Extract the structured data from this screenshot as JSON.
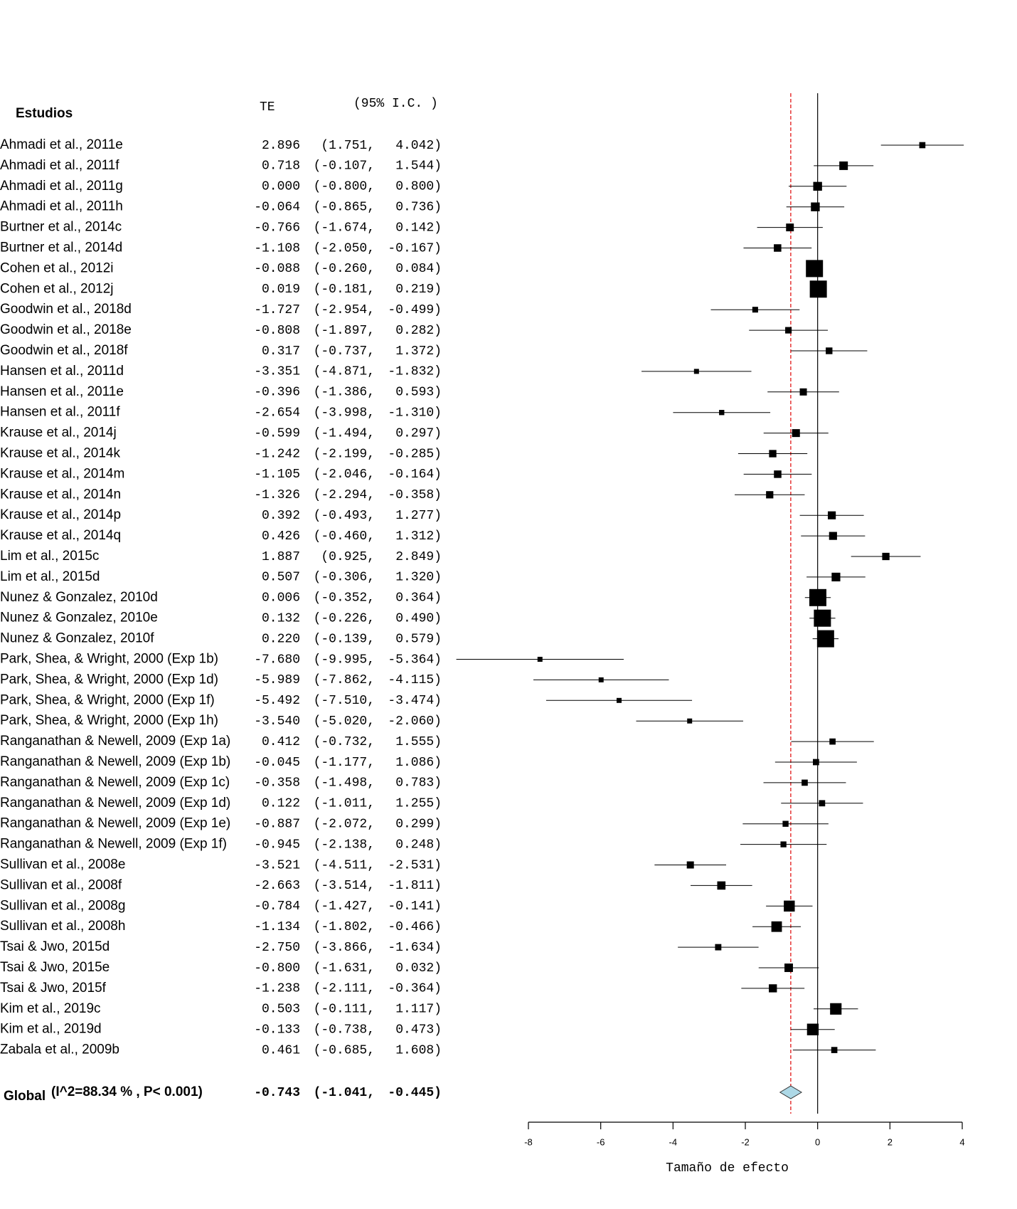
{
  "chart_data": {
    "type": "forest",
    "study_header": "Estudios",
    "te_header": "TE",
    "ci_header": "(95% I.C. )",
    "xlabel": "Tamaño de efecto",
    "xlim": [
      -8,
      4
    ],
    "xticks": [
      -8,
      -6,
      -4,
      -2,
      0,
      2,
      4
    ],
    "marker_color": "#000000",
    "diamond_color": "#add8e6",
    "reference_color": "#e00000",
    "studies": [
      "Ahmadi et al., 2011e",
      "Ahmadi et al., 2011f",
      "Ahmadi et al., 2011g",
      "Ahmadi et al., 2011h",
      "Burtner et al., 2014c",
      "Burtner et al., 2014d",
      "Cohen et al., 2012i",
      "Cohen et al., 2012j",
      "Goodwin et al., 2018d",
      "Goodwin et al., 2018e",
      "Goodwin et al., 2018f",
      "Hansen et al., 2011d",
      "Hansen et al., 2011e",
      "Hansen et al., 2011f",
      "Krause et al., 2014j",
      "Krause et al., 2014k",
      "Krause et al., 2014m",
      "Krause et al., 2014n",
      "Krause et al., 2014p",
      "Krause et al., 2014q",
      "Lim et al., 2015c",
      "Lim et al., 2015d",
      "Nunez & Gonzalez, 2010d",
      "Nunez & Gonzalez, 2010e",
      "Nunez & Gonzalez, 2010f",
      "Park, Shea, & Wright, 2000 (Exp 1b)",
      "Park, Shea, & Wright, 2000 (Exp 1d)",
      "Park, Shea, & Wright, 2000 (Exp 1f)",
      "Park, Shea, & Wright, 2000 (Exp 1h)",
      "Ranganathan & Newell, 2009 (Exp 1a)",
      "Ranganathan & Newell, 2009 (Exp 1b)",
      "Ranganathan & Newell, 2009 (Exp 1c)",
      "Ranganathan & Newell, 2009 (Exp 1d)",
      "Ranganathan & Newell, 2009 (Exp 1e)",
      "Ranganathan & Newell, 2009 (Exp 1f)",
      "Sullivan et al., 2008e",
      "Sullivan et al., 2008f",
      "Sullivan et al., 2008g",
      "Sullivan et al., 2008h",
      "Tsai & Jwo, 2015d",
      "Tsai & Jwo, 2015e",
      "Tsai & Jwo, 2015f",
      "Kim et al., 2019c",
      "Kim et al., 2019d",
      "Zabala et al., 2009b"
    ],
    "values": [
      2.896,
      0.718,
      0.0,
      -0.064,
      -0.766,
      -1.108,
      -0.088,
      0.019,
      -1.727,
      -0.808,
      0.317,
      -3.351,
      -0.396,
      -2.654,
      -0.599,
      -1.242,
      -1.105,
      -1.326,
      0.392,
      0.426,
      1.887,
      0.507,
      0.006,
      0.132,
      0.22,
      -7.68,
      -5.989,
      -5.492,
      -3.54,
      0.412,
      -0.045,
      -0.358,
      0.122,
      -0.887,
      -0.945,
      -3.521,
      -2.663,
      -0.784,
      -1.134,
      -2.75,
      -0.8,
      -1.238,
      0.503,
      -0.133,
      0.461
    ],
    "value_labels": [
      "2.896",
      "0.718",
      "0.000",
      "-0.064",
      "-0.766",
      "-1.108",
      "-0.088",
      "0.019",
      "-1.727",
      "-0.808",
      "0.317",
      "-3.351",
      "-0.396",
      "-2.654",
      "-0.599",
      "-1.242",
      "-1.105",
      "-1.326",
      "0.392",
      "0.426",
      "1.887",
      "0.507",
      "0.006",
      "0.132",
      "0.220",
      "-7.680",
      "-5.989",
      "-5.492",
      "-3.540",
      "0.412",
      "-0.045",
      "-0.358",
      "0.122",
      "-0.887",
      "-0.945",
      "-3.521",
      "-2.663",
      "-0.784",
      "-1.134",
      "-2.750",
      "-0.800",
      "-1.238",
      "0.503",
      "-0.133",
      "0.461"
    ],
    "lower": [
      1.751,
      -0.107,
      -0.8,
      -0.865,
      -1.674,
      -2.05,
      -0.26,
      -0.181,
      -2.954,
      -1.897,
      -0.737,
      -4.871,
      -1.386,
      -3.998,
      -1.494,
      -2.199,
      -2.046,
      -2.294,
      -0.493,
      -0.46,
      0.925,
      -0.306,
      -0.352,
      -0.226,
      -0.139,
      -9.995,
      -7.862,
      -7.51,
      -5.02,
      -0.732,
      -1.177,
      -1.498,
      -1.011,
      -2.072,
      -2.138,
      -4.511,
      -3.514,
      -1.427,
      -1.802,
      -3.866,
      -1.631,
      -2.111,
      -0.111,
      -0.738,
      -0.685
    ],
    "lower_labels": [
      "(1.751,",
      "(-0.107,",
      "(-0.800,",
      "(-0.865,",
      "(-1.674,",
      "(-2.050,",
      "(-0.260,",
      "(-0.181,",
      "(-2.954,",
      "(-1.897,",
      "(-0.737,",
      "(-4.871,",
      "(-1.386,",
      "(-3.998,",
      "(-1.494,",
      "(-2.199,",
      "(-2.046,",
      "(-2.294,",
      "(-0.493,",
      "(-0.460,",
      "(0.925,",
      "(-0.306,",
      "(-0.352,",
      "(-0.226,",
      "(-0.139,",
      "(-9.995,",
      "(-7.862,",
      "(-7.510,",
      "(-5.020,",
      "(-0.732,",
      "(-1.177,",
      "(-1.498,",
      "(-1.011,",
      "(-2.072,",
      "(-2.138,",
      "(-4.511,",
      "(-3.514,",
      "(-1.427,",
      "(-1.802,",
      "(-3.866,",
      "(-1.631,",
      "(-2.111,",
      "(-0.111,",
      "(-0.738,",
      "(-0.685,"
    ],
    "upper": [
      4.042,
      1.544,
      0.8,
      0.736,
      0.142,
      -0.167,
      0.084,
      0.219,
      -0.499,
      0.282,
      1.372,
      -1.832,
      0.593,
      -1.31,
      0.297,
      -0.285,
      -0.164,
      -0.358,
      1.277,
      1.312,
      2.849,
      1.32,
      0.364,
      0.49,
      0.579,
      -5.364,
      -4.115,
      -3.474,
      -2.06,
      1.555,
      1.086,
      0.783,
      1.255,
      0.299,
      0.248,
      -2.531,
      -1.811,
      -0.141,
      -0.466,
      -1.634,
      0.032,
      -0.364,
      1.117,
      0.473,
      1.608
    ],
    "upper_labels": [
      "4.042)",
      "1.544)",
      "0.800)",
      "0.736)",
      "0.142)",
      "-0.167)",
      "0.084)",
      "0.219)",
      "-0.499)",
      "0.282)",
      "1.372)",
      "-1.832)",
      "0.593)",
      "-1.310)",
      "0.297)",
      "-0.285)",
      "-0.164)",
      "-0.358)",
      "1.277)",
      "1.312)",
      "2.849)",
      "1.320)",
      "0.364)",
      "0.490)",
      "0.579)",
      "-5.364)",
      "-4.115)",
      "-3.474)",
      "-2.060)",
      "1.555)",
      "1.086)",
      "0.783)",
      "1.255)",
      "0.299)",
      "0.248)",
      "-2.531)",
      "-1.811)",
      "-0.141)",
      "-0.466)",
      "-1.634)",
      "0.032)",
      "-0.364)",
      "1.117)",
      "0.473)",
      "1.608)"
    ],
    "pooled": {
      "name": "Global",
      "stats": "(I^2=88.34 % , P< 0.001)",
      "value": -0.743,
      "value_label": "-0.743",
      "lower": -1.041,
      "lower_label": "(-1.041,",
      "upper": -0.445,
      "upper_label": "-0.445)"
    }
  }
}
